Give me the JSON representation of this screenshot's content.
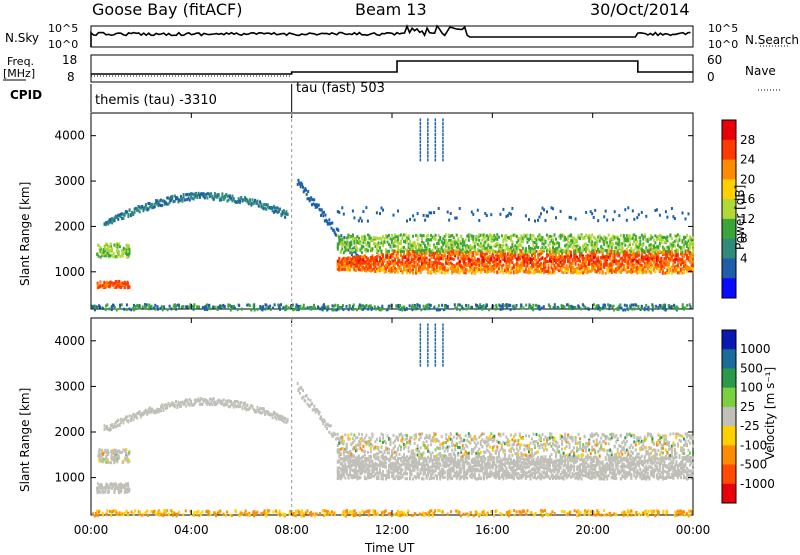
{
  "header": {
    "station": "Goose Bay (fitACF)",
    "beam": "Beam 13",
    "date": "30/Oct/2014"
  },
  "top_panel": {
    "left_label": "N.Sky",
    "left_scale_top": "10^5",
    "left_scale_bottom": "10^0",
    "right_label": "N.Search",
    "right_scale_top": "10^5",
    "right_scale_bottom": "10^0"
  },
  "freq_panel": {
    "left_label_1": "Freq.",
    "left_label_2": "[MHz]",
    "left_tick_top": "18",
    "left_tick_bottom": "8",
    "right_label": "Nave",
    "right_tick_top": "60",
    "right_tick_bottom": "0"
  },
  "cpid": {
    "label": "CPID",
    "mode1": "themis (tau) -3310",
    "mode2": "tau (fast) 503"
  },
  "power_colorbar": {
    "label": "Power [dB]",
    "ticks": [
      "28",
      "24",
      "20",
      "16",
      "12",
      "8",
      "4"
    ],
    "colors": [
      "#e8000b",
      "#ff3a00",
      "#ff8c00",
      "#ffd000",
      "#b0d838",
      "#3aa538",
      "#2e8a7a",
      "#1c5fa8",
      "#0a0aff"
    ]
  },
  "velocity_colorbar": {
    "label": "Velocity [m s⁻¹]",
    "ticks": [
      "1000",
      "500",
      "100",
      "25",
      "-25",
      "-100",
      "-500",
      "-1000"
    ],
    "colors": [
      "#0a1ab0",
      "#1a6a9a",
      "#2a9a4a",
      "#7ad040",
      "#c0c0b8",
      "#ffd000",
      "#ff8c00",
      "#ff4a00",
      "#e8000b"
    ]
  },
  "chart_data": [
    {
      "type": "heatmap",
      "name": "power",
      "xlabel": "",
      "ylabel": "Slant Range [km]",
      "xlim_hours": [
        0,
        24
      ],
      "ylim": [
        180,
        4500
      ],
      "yticks": [
        1000,
        2000,
        3000,
        4000
      ],
      "band_scatter": [
        {
          "start_hour": 9.8,
          "end_hour": 24.0,
          "center_km": 1300,
          "width_km": 300,
          "db": 26
        },
        {
          "start_hour": 9.8,
          "end_hour": 24.0,
          "center_km": 1750,
          "width_km": 250,
          "db": 14
        },
        {
          "start_hour": 0.2,
          "end_hour": 1.5,
          "center_km": 750,
          "width_km": 150,
          "db": 24
        },
        {
          "start_hour": 0.5,
          "end_hour": 7.8,
          "center_km": 2400,
          "width_km": 150,
          "db": 7
        }
      ]
    },
    {
      "type": "heatmap",
      "name": "velocity",
      "xlabel": "Time UT",
      "ylabel": "Slant Range [km]",
      "xlim_hours": [
        0,
        24
      ],
      "ylim": [
        180,
        4500
      ],
      "yticks": [
        1000,
        2000,
        3000,
        4000
      ],
      "xticks": [
        "00:00",
        "04:00",
        "08:00",
        "12:00",
        "16:00",
        "20:00",
        "00:00"
      ]
    }
  ]
}
